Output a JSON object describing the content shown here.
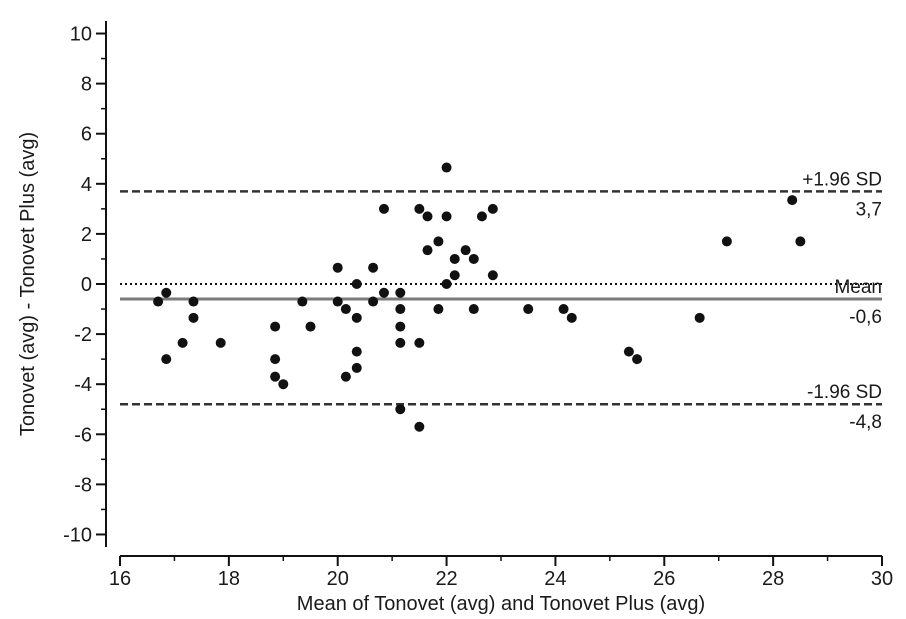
{
  "chart_data": {
    "type": "scatter",
    "title": "",
    "xlabel": "Mean of Tonovet (avg) and Tonovet Plus (avg)",
    "ylabel": "Tonovet (avg) - Tonovet Plus (avg)",
    "xlim": [
      16,
      30
    ],
    "ylim": [
      -10.5,
      10.5
    ],
    "x_ticks": [
      "16",
      "18",
      "20",
      "22",
      "24",
      "26",
      "28",
      "30"
    ],
    "y_ticks": [
      "-10",
      "-8",
      "-6",
      "-4",
      "-2",
      "0",
      "2",
      "4",
      "6",
      "8",
      "10"
    ],
    "grid": false,
    "zero_line": {
      "y": 0,
      "style": "dotted"
    },
    "reference_lines": [
      {
        "label": "+1.96 SD",
        "value_label": "3,7",
        "y": 3.7,
        "style": "dashed"
      },
      {
        "label": "Mean",
        "value_label": "-0,6",
        "y": -0.6,
        "style": "solid"
      },
      {
        "label": "-1.96 SD",
        "value_label": "-4,8",
        "y": -4.8,
        "style": "dashed"
      }
    ],
    "points": [
      {
        "x": 16.7,
        "y": -0.7
      },
      {
        "x": 16.85,
        "y": -0.35
      },
      {
        "x": 16.85,
        "y": -3.0
      },
      {
        "x": 17.15,
        "y": -2.35
      },
      {
        "x": 17.35,
        "y": -0.7
      },
      {
        "x": 17.35,
        "y": -1.35
      },
      {
        "x": 17.85,
        "y": -2.35
      },
      {
        "x": 18.85,
        "y": -1.7
      },
      {
        "x": 18.85,
        "y": -3.0
      },
      {
        "x": 18.85,
        "y": -3.7
      },
      {
        "x": 19.0,
        "y": -4.0
      },
      {
        "x": 19.35,
        "y": -0.7
      },
      {
        "x": 19.5,
        "y": -1.7
      },
      {
        "x": 20.0,
        "y": 0.65
      },
      {
        "x": 20.0,
        "y": -0.7
      },
      {
        "x": 20.15,
        "y": -1.0
      },
      {
        "x": 20.15,
        "y": -3.7
      },
      {
        "x": 20.35,
        "y": 0.0
      },
      {
        "x": 20.35,
        "y": -1.35
      },
      {
        "x": 20.35,
        "y": -2.7
      },
      {
        "x": 20.35,
        "y": -3.35
      },
      {
        "x": 20.65,
        "y": 0.65
      },
      {
        "x": 20.65,
        "y": -0.7
      },
      {
        "x": 20.85,
        "y": 3.0
      },
      {
        "x": 20.85,
        "y": -0.35
      },
      {
        "x": 21.15,
        "y": -0.35
      },
      {
        "x": 21.15,
        "y": -1.0
      },
      {
        "x": 21.15,
        "y": -1.7
      },
      {
        "x": 21.15,
        "y": -2.35
      },
      {
        "x": 21.15,
        "y": -5.0
      },
      {
        "x": 21.5,
        "y": 3.0
      },
      {
        "x": 21.5,
        "y": -2.35
      },
      {
        "x": 21.5,
        "y": -5.7
      },
      {
        "x": 21.65,
        "y": 2.7
      },
      {
        "x": 21.65,
        "y": 1.35
      },
      {
        "x": 21.85,
        "y": 1.7
      },
      {
        "x": 21.85,
        "y": -1.0
      },
      {
        "x": 22.0,
        "y": 4.65
      },
      {
        "x": 22.0,
        "y": 2.7
      },
      {
        "x": 22.0,
        "y": 0.0
      },
      {
        "x": 22.15,
        "y": 1.0
      },
      {
        "x": 22.15,
        "y": 0.35
      },
      {
        "x": 22.35,
        "y": 1.35
      },
      {
        "x": 22.5,
        "y": 1.0
      },
      {
        "x": 22.5,
        "y": -1.0
      },
      {
        "x": 22.65,
        "y": 2.7
      },
      {
        "x": 22.85,
        "y": 3.0
      },
      {
        "x": 22.85,
        "y": 0.35
      },
      {
        "x": 23.5,
        "y": -1.0
      },
      {
        "x": 24.15,
        "y": -1.0
      },
      {
        "x": 24.3,
        "y": -1.35
      },
      {
        "x": 25.35,
        "y": -2.7
      },
      {
        "x": 25.5,
        "y": -3.0
      },
      {
        "x": 26.65,
        "y": -1.35
      },
      {
        "x": 27.15,
        "y": 1.7
      },
      {
        "x": 28.35,
        "y": 3.35
      },
      {
        "x": 28.5,
        "y": 1.7
      }
    ]
  }
}
